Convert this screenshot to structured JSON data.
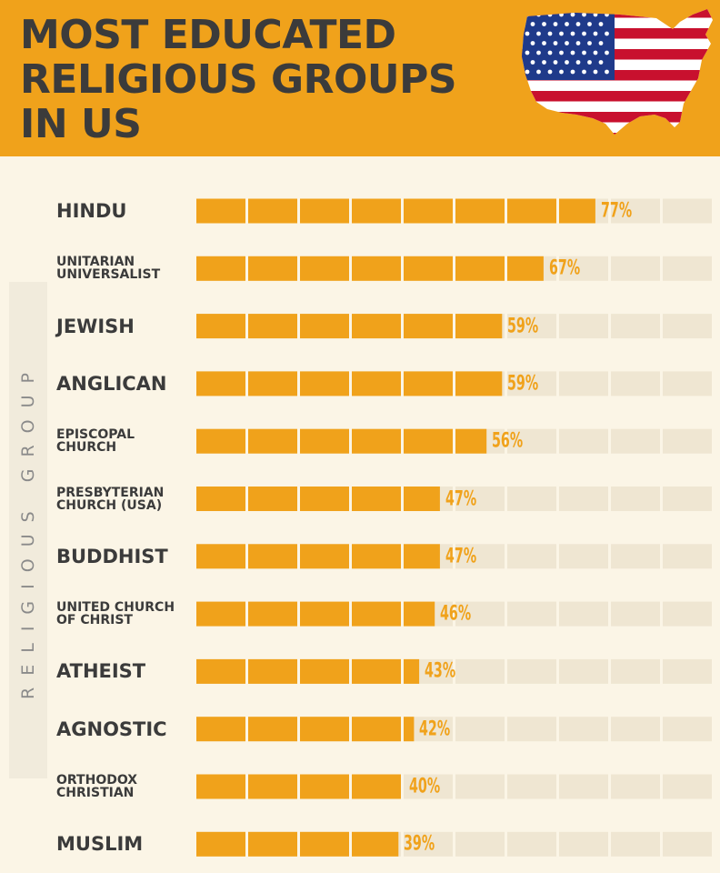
{
  "header": {
    "title_lines": [
      "MOST EDUCATED",
      "RELIGIOUS GROUPS",
      "IN US"
    ],
    "flag_icon": "us-flag-map-icon"
  },
  "colors": {
    "header_bg": "#f0a21b",
    "bar_fill": "#f0a21b",
    "bar_empty": "#efe6d2",
    "page_bg": "#fbf5e6",
    "text_dark": "#3b3b3b"
  },
  "chart_data": {
    "type": "bar",
    "orientation": "horizontal",
    "title": "MOST EDUCATED RELIGIOUS GROUPS IN US",
    "ylabel": "RELIGIOUS GROUP",
    "xlim": [
      0,
      100
    ],
    "segments": 10,
    "categories": [
      [
        "HINDU"
      ],
      [
        "UNITARIAN",
        "UNIVERSALIST"
      ],
      [
        "JEWISH"
      ],
      [
        "ANGLICAN"
      ],
      [
        "EPISCOPAL",
        "CHURCH"
      ],
      [
        "PRESBYTERIAN",
        "CHURCH (USA)"
      ],
      [
        "BUDDHIST"
      ],
      [
        "UNITED CHURCH",
        "OF CHRIST"
      ],
      [
        "ATHEIST"
      ],
      [
        "AGNOSTIC"
      ],
      [
        "ORTHODOX",
        "CHRISTIAN"
      ],
      [
        "MUSLIM"
      ]
    ],
    "values": [
      77,
      67,
      59,
      59,
      56,
      47,
      47,
      46,
      43,
      42,
      40,
      39
    ],
    "value_labels": [
      "77%",
      "67%",
      "59%",
      "59%",
      "56%",
      "47%",
      "47%",
      "46%",
      "43%",
      "42%",
      "40%",
      "39%"
    ]
  }
}
